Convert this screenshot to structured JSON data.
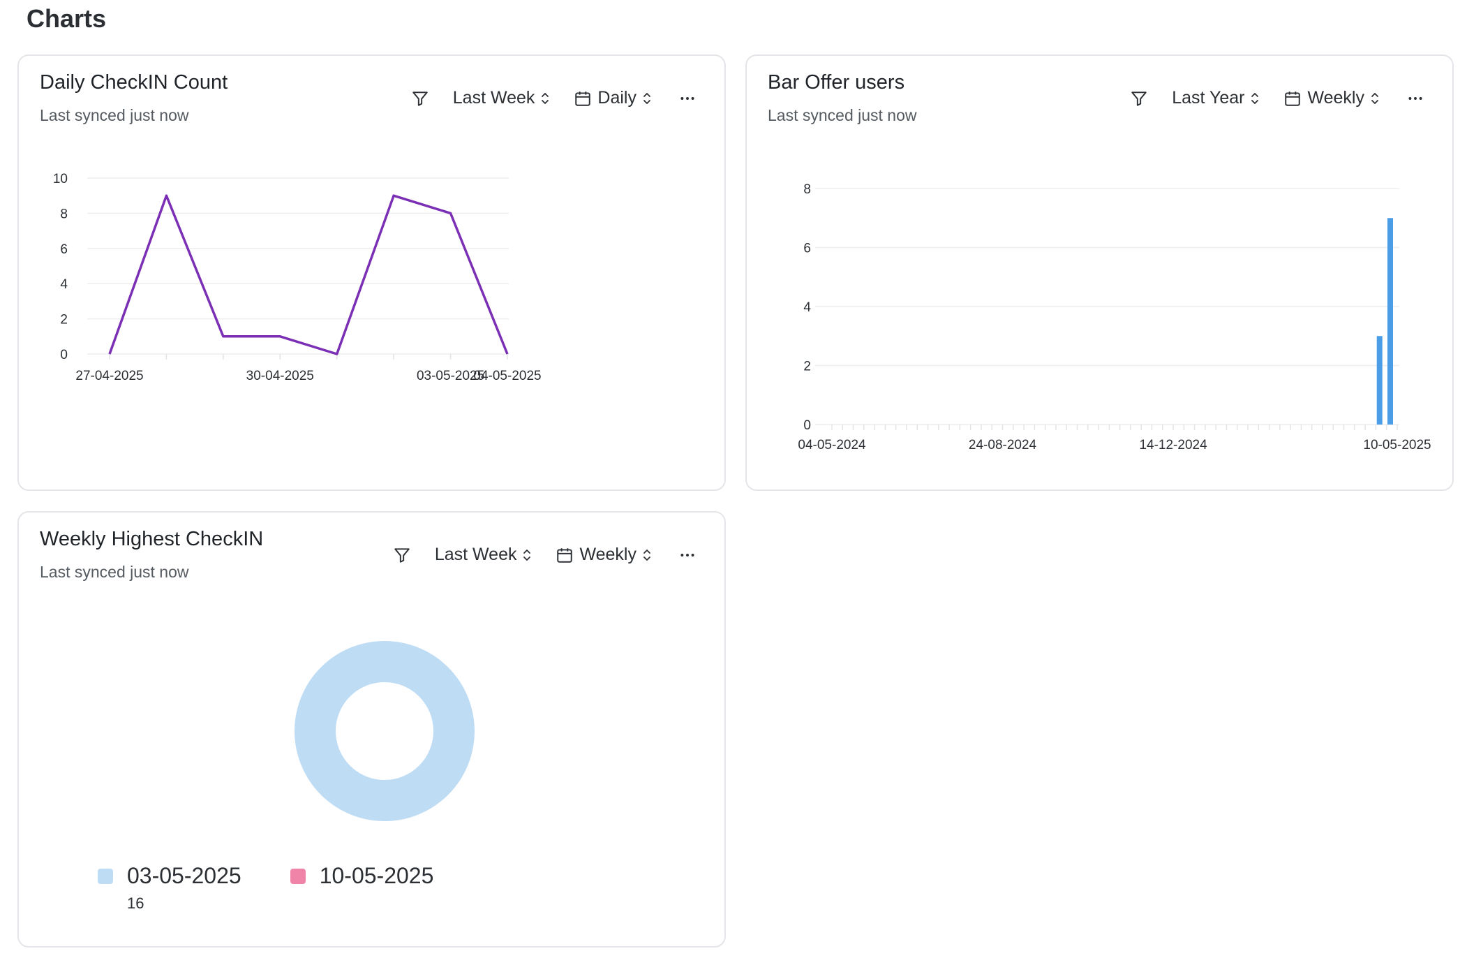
{
  "page": {
    "title": "Charts"
  },
  "cards": [
    {
      "title": "Daily CheckIN Count",
      "subtitle": "Last synced just now",
      "period": "Last Week",
      "interval": "Daily"
    },
    {
      "title": "Bar Offer users",
      "subtitle": "Last synced just now",
      "period": "Last Year",
      "interval": "Weekly"
    },
    {
      "title": "Weekly Highest CheckIN",
      "subtitle": "Last synced just now",
      "period": "Last Week",
      "interval": "Weekly"
    }
  ],
  "icons": {
    "filter": "filter-icon",
    "calendar": "calendar-icon",
    "sort": "chevron-up-down-icon",
    "more": "more-horizontal-icon"
  },
  "colors": {
    "line": "#7b2fb5",
    "bar": "#4a9de6",
    "donut_slice_1": "#bfdcf5",
    "donut_slice_2": "#f084a8",
    "gridline": "#eeeeee"
  },
  "chart_data": [
    {
      "type": "line",
      "x": [
        "27-04-2025",
        "28-04-2025",
        "29-04-2025",
        "30-04-2025",
        "01-05-2025",
        "02-05-2025",
        "03-05-2025",
        "04-05-2025"
      ],
      "y": [
        0,
        9,
        1,
        1,
        0,
        9,
        8,
        0
      ],
      "tick_labels": [
        "27-04-2025",
        "30-04-2025",
        "03-05-2025",
        "04-05-2025"
      ],
      "ylim": [
        0,
        10
      ],
      "yticks": [
        0,
        2,
        4,
        6,
        8,
        10
      ],
      "grid": true
    },
    {
      "type": "bar",
      "x_start": "04-05-2024",
      "x_end": "10-05-2025",
      "tick_labels": [
        "04-05-2024",
        "24-08-2024",
        "14-12-2024",
        "10-05-2025"
      ],
      "bars": [
        {
          "x": "03-05-2025",
          "value": 3
        },
        {
          "x": "10-05-2025",
          "value": 7
        }
      ],
      "ylim": [
        0,
        8
      ],
      "yticks": [
        0,
        2,
        4,
        6,
        8
      ],
      "grid": true
    },
    {
      "type": "pie",
      "style": "donut",
      "slices": [
        {
          "label": "03-05-2025",
          "value": 16,
          "value_label": "16"
        },
        {
          "label": "10-05-2025",
          "value": 0,
          "value_label": ""
        }
      ]
    }
  ]
}
